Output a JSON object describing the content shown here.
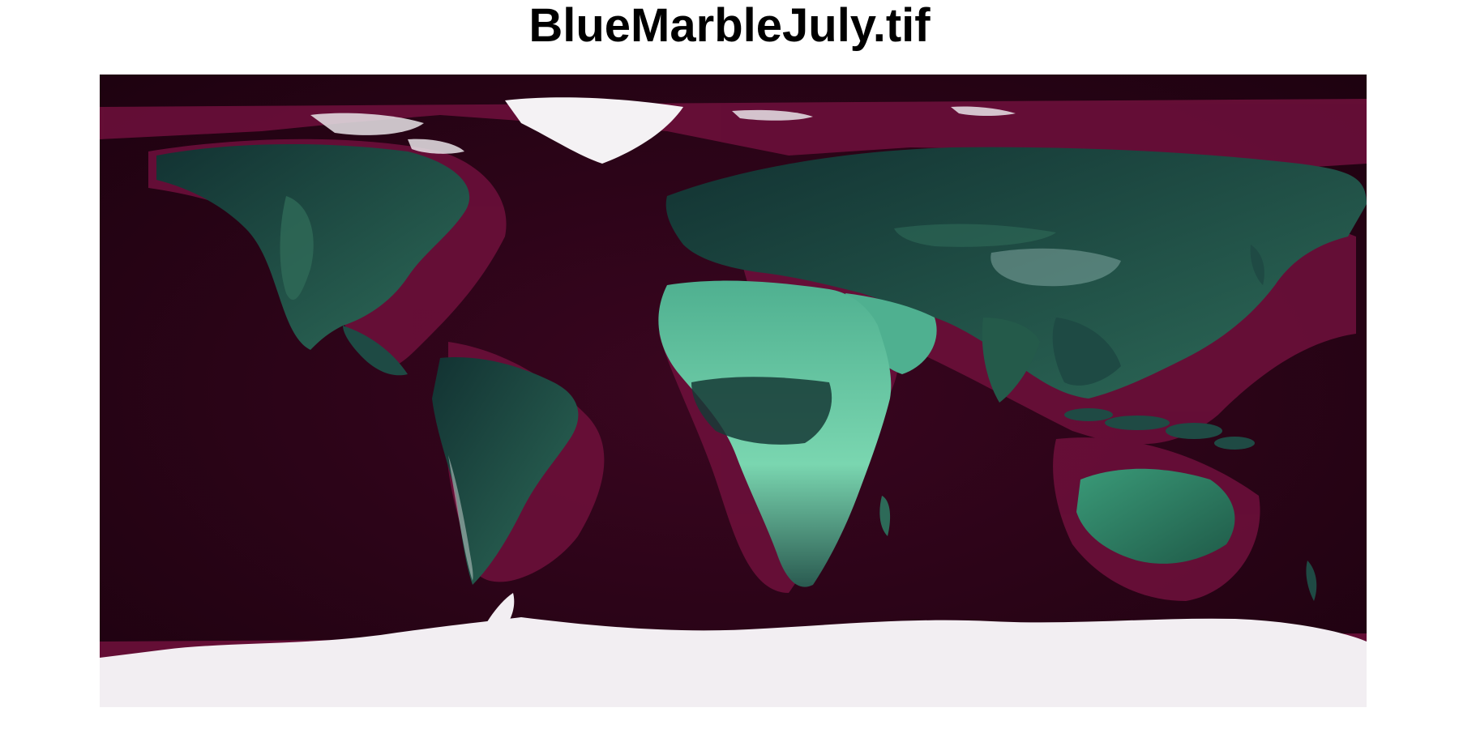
{
  "figure": {
    "title": "BlueMarbleJuly.tif"
  },
  "map": {
    "palette": {
      "ocean_deep": "#1e0210",
      "ocean_mid": "#3a0620",
      "ocean_shelf": "#6b0f3a",
      "land_dark": "#0f2a2a",
      "land_mid": "#1f4a44",
      "land_bright": "#5dcaa0",
      "ice": "#f2eef2"
    },
    "features": [
      "north-america",
      "greenland",
      "south-america",
      "europe-asia",
      "africa",
      "arabia",
      "india",
      "australia",
      "antarctica"
    ]
  }
}
